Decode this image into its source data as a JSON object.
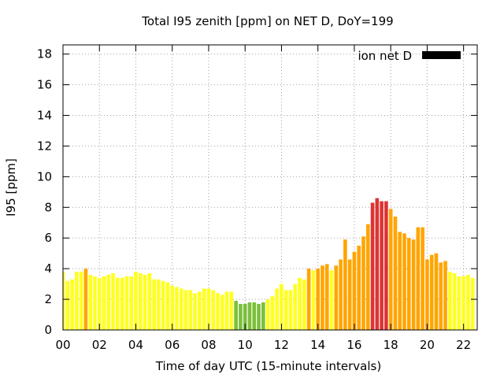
{
  "chart_data": {
    "type": "bar",
    "title": "Total I95 zenith [ppm] on NET D, DoY=199",
    "xlabel": "Time of day UTC (15-minute intervals)",
    "ylabel": "I95 [ppm]",
    "legend": {
      "label": "ion net D",
      "color": "#000000",
      "placement": "top-right"
    },
    "grid": true,
    "ylim": [
      0,
      18.6
    ],
    "xlim": [
      0,
      22.75
    ],
    "x_ticks": [
      "00",
      "02",
      "04",
      "06",
      "08",
      "10",
      "12",
      "14",
      "16",
      "18",
      "20",
      "22"
    ],
    "y_ticks": [
      "0",
      "2",
      "4",
      "6",
      "8",
      "10",
      "12",
      "14",
      "16",
      "18"
    ],
    "bar_interval_hours": 0.25,
    "values": [
      3.8,
      3.2,
      3.3,
      3.8,
      3.8,
      4.0,
      3.6,
      3.5,
      3.4,
      3.5,
      3.6,
      3.7,
      3.4,
      3.4,
      3.5,
      3.5,
      3.8,
      3.7,
      3.6,
      3.7,
      3.3,
      3.3,
      3.2,
      3.1,
      2.9,
      2.8,
      2.7,
      2.6,
      2.6,
      2.4,
      2.5,
      2.7,
      2.7,
      2.6,
      2.4,
      2.3,
      2.5,
      2.5,
      1.9,
      1.7,
      1.7,
      1.8,
      1.8,
      1.7,
      1.8,
      2.0,
      2.2,
      2.7,
      3.0,
      2.6,
      2.6,
      3.0,
      3.4,
      3.3,
      4.0,
      3.9,
      4.0,
      4.2,
      4.3,
      3.9,
      4.2,
      4.6,
      5.9,
      4.6,
      5.1,
      5.5,
      6.1,
      6.9,
      8.3,
      8.6,
      8.4,
      8.4,
      7.9,
      7.4,
      6.4,
      6.3,
      6.0,
      5.9,
      6.7,
      6.7,
      4.6,
      4.9,
      5.0,
      4.4,
      4.5,
      3.8,
      3.7,
      3.5,
      3.5,
      3.6,
      3.4
    ],
    "color_scale": [
      {
        "max": 2.0,
        "color": "#7bbf3a"
      },
      {
        "max": 4.0,
        "color": "#ffff22"
      },
      {
        "max": 8.0,
        "color": "#ffa500"
      },
      {
        "max": 99,
        "color": "#dd3333"
      }
    ]
  }
}
